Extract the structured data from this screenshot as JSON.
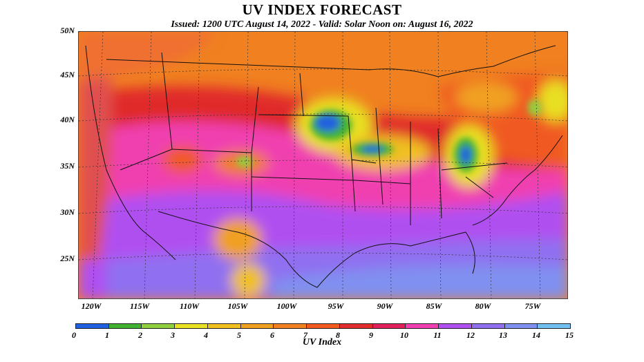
{
  "header": {
    "title": "UV INDEX FORECAST",
    "subtitle": "Issued: 1200 UTC August 14, 2022  -  Valid: Solar Noon on: August 16, 2022"
  },
  "axes": {
    "lat_labels": [
      "50N",
      "45N",
      "40N",
      "35N",
      "30N",
      "25N"
    ],
    "lon_labels": [
      "120W",
      "115W",
      "110W",
      "105W",
      "100W",
      "95W",
      "90W",
      "85W",
      "80W",
      "75W"
    ]
  },
  "legend": {
    "label": "UV Index",
    "ticks": [
      "0",
      "1",
      "2",
      "3",
      "4",
      "5",
      "6",
      "7",
      "8",
      "9",
      "10",
      "11",
      "12",
      "13",
      "14",
      "15"
    ],
    "colors": [
      "#2060e0",
      "#40b030",
      "#90d040",
      "#e8e020",
      "#f0c020",
      "#f0a020",
      "#f08020",
      "#f05a20",
      "#e02c2c",
      "#e0205a",
      "#f040b0",
      "#b050f0",
      "#9070f0",
      "#8090f0",
      "#70c0f0"
    ]
  }
}
